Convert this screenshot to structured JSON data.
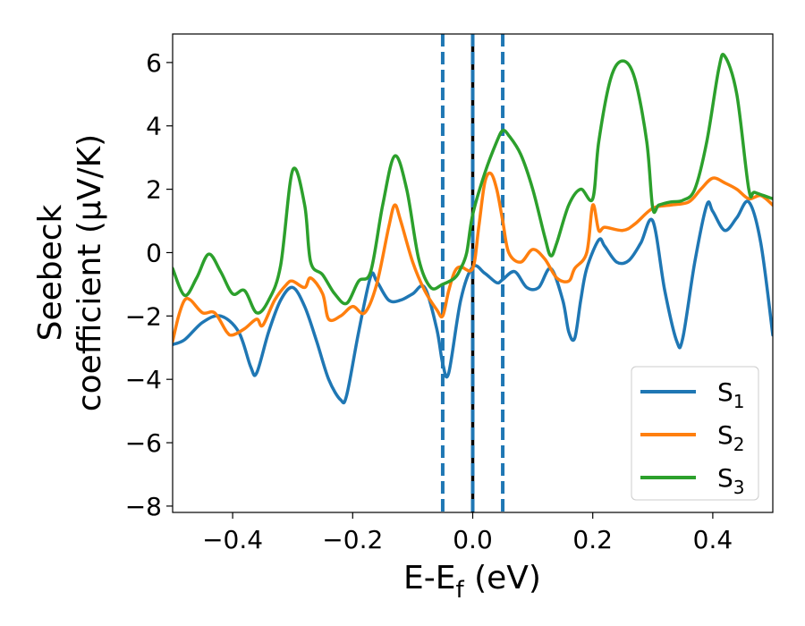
{
  "chart_data": {
    "type": "line",
    "title": "",
    "xlabel": "E-E",
    "xlabel_sub": "f",
    "xlabel_unit": " (eV)",
    "ylabel_line1": "Seebeck",
    "ylabel_line2": "coefficient  (μV/K)",
    "xlim": [
      -0.5,
      0.5
    ],
    "ylim": [
      -8.2,
      6.9
    ],
    "xticks": [
      -0.4,
      -0.2,
      0.0,
      0.2,
      0.4
    ],
    "xtick_labels": [
      "−0.4",
      "−0.2",
      "0.0",
      "0.2",
      "0.4"
    ],
    "yticks": [
      -8,
      -6,
      -4,
      -2,
      0,
      2,
      4,
      6
    ],
    "ytick_labels": [
      "−8",
      "−6",
      "−4",
      "−2",
      "0",
      "2",
      "4",
      "6"
    ],
    "grid": false,
    "legend_position": "lower-right",
    "vlines": [
      {
        "x": -0.05,
        "style": "dashed",
        "color": "#1f77b4"
      },
      {
        "x": 0.0,
        "style": "solid",
        "color": "#000000"
      },
      {
        "x": 0.0,
        "style": "dashed",
        "color": "#1f77b4"
      },
      {
        "x": 0.05,
        "style": "dashed",
        "color": "#1f77b4"
      }
    ],
    "series": [
      {
        "name": "S",
        "sub": "1",
        "color": "#1f77b4",
        "x": [
          -0.5,
          -0.48,
          -0.45,
          -0.42,
          -0.39,
          -0.37,
          -0.36,
          -0.34,
          -0.32,
          -0.3,
          -0.28,
          -0.26,
          -0.24,
          -0.22,
          -0.21,
          -0.19,
          -0.17,
          -0.16,
          -0.14,
          -0.12,
          -0.1,
          -0.08,
          -0.06,
          -0.05,
          -0.04,
          -0.02,
          0.0,
          0.02,
          0.04,
          0.05,
          0.07,
          0.09,
          0.11,
          0.13,
          0.15,
          0.16,
          0.17,
          0.18,
          0.19,
          0.21,
          0.22,
          0.24,
          0.26,
          0.28,
          0.3,
          0.32,
          0.34,
          0.35,
          0.37,
          0.39,
          0.4,
          0.42,
          0.44,
          0.46,
          0.48,
          0.5
        ],
        "y": [
          -2.9,
          -2.75,
          -2.2,
          -2.0,
          -2.5,
          -3.6,
          -3.8,
          -2.5,
          -1.5,
          -1.1,
          -1.7,
          -2.8,
          -4.0,
          -4.65,
          -4.5,
          -2.5,
          -0.75,
          -0.9,
          -1.5,
          -1.5,
          -1.3,
          -1.1,
          -2.4,
          -3.5,
          -3.8,
          -1.5,
          -0.45,
          -0.65,
          -0.95,
          -0.85,
          -0.6,
          -1.1,
          -1.1,
          -0.5,
          -1.5,
          -2.5,
          -2.7,
          -1.5,
          -0.5,
          0.4,
          0.2,
          -0.3,
          -0.25,
          0.3,
          1.0,
          -1.2,
          -2.8,
          -2.7,
          -0.3,
          1.5,
          1.3,
          0.7,
          1.1,
          1.6,
          0.3,
          -2.6
        ]
      },
      {
        "name": "S",
        "sub": "2",
        "color": "#ff7f0e",
        "x": [
          -0.5,
          -0.49,
          -0.48,
          -0.47,
          -0.45,
          -0.43,
          -0.41,
          -0.4,
          -0.38,
          -0.36,
          -0.35,
          -0.33,
          -0.31,
          -0.3,
          -0.28,
          -0.27,
          -0.25,
          -0.24,
          -0.22,
          -0.2,
          -0.18,
          -0.16,
          -0.14,
          -0.13,
          -0.12,
          -0.1,
          -0.08,
          -0.06,
          -0.05,
          -0.04,
          -0.03,
          -0.02,
          0.0,
          0.01,
          0.02,
          0.03,
          0.04,
          0.05,
          0.06,
          0.08,
          0.1,
          0.12,
          0.14,
          0.16,
          0.17,
          0.19,
          0.2,
          0.21,
          0.22,
          0.25,
          0.27,
          0.3,
          0.33,
          0.36,
          0.38,
          0.4,
          0.42,
          0.44,
          0.46,
          0.48,
          0.5
        ],
        "y": [
          -2.8,
          -2.0,
          -1.5,
          -1.5,
          -1.9,
          -1.9,
          -2.5,
          -2.6,
          -2.4,
          -2.1,
          -2.3,
          -1.5,
          -1.0,
          -0.9,
          -1.1,
          -0.8,
          -1.3,
          -2.1,
          -2.0,
          -1.7,
          -1.9,
          -1.0,
          0.8,
          1.5,
          1.0,
          -0.3,
          -1.2,
          -1.8,
          -2.0,
          -1.2,
          -0.6,
          -0.45,
          -0.5,
          0.8,
          2.2,
          2.5,
          2.0,
          1.0,
          0.0,
          -0.3,
          0.1,
          -0.2,
          -0.8,
          -0.9,
          -0.5,
          0.0,
          1.5,
          0.7,
          0.8,
          0.7,
          0.9,
          1.4,
          1.5,
          1.6,
          2.0,
          2.35,
          2.2,
          2.0,
          1.7,
          1.8,
          1.5
        ]
      },
      {
        "name": "S",
        "sub": "3",
        "color": "#2ca02c",
        "x": [
          -0.5,
          -0.48,
          -0.46,
          -0.44,
          -0.42,
          -0.4,
          -0.38,
          -0.36,
          -0.34,
          -0.32,
          -0.3,
          -0.28,
          -0.27,
          -0.25,
          -0.23,
          -0.21,
          -0.19,
          -0.17,
          -0.15,
          -0.13,
          -0.11,
          -0.09,
          -0.07,
          -0.05,
          -0.03,
          -0.02,
          -0.01,
          0.0,
          0.02,
          0.04,
          0.05,
          0.06,
          0.08,
          0.1,
          0.12,
          0.13,
          0.14,
          0.16,
          0.18,
          0.2,
          0.21,
          0.23,
          0.25,
          0.27,
          0.29,
          0.3,
          0.31,
          0.33,
          0.35,
          0.37,
          0.39,
          0.41,
          0.42,
          0.44,
          0.46,
          0.47,
          0.5
        ],
        "y": [
          -0.5,
          -1.35,
          -0.8,
          -0.05,
          -0.6,
          -1.3,
          -1.2,
          -1.9,
          -1.5,
          -0.4,
          2.6,
          1.5,
          -0.3,
          -0.7,
          -1.3,
          -1.6,
          -0.9,
          -0.6,
          1.5,
          3.05,
          2.0,
          -0.2,
          -1.1,
          -1.0,
          -0.8,
          -0.5,
          0.0,
          1.2,
          2.5,
          3.5,
          3.85,
          3.7,
          3.1,
          2.0,
          0.5,
          -0.1,
          0.3,
          1.5,
          2.0,
          1.7,
          3.5,
          5.5,
          6.05,
          5.5,
          3.5,
          1.4,
          1.5,
          1.6,
          1.65,
          2.0,
          3.5,
          5.8,
          6.2,
          5.0,
          2.0,
          1.9,
          1.7
        ]
      }
    ]
  }
}
